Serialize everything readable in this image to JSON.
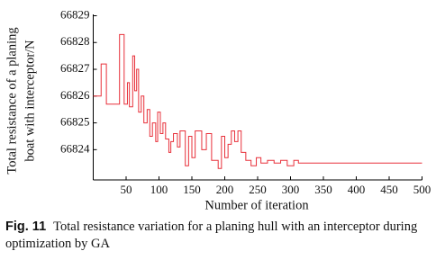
{
  "chart_data": {
    "type": "line",
    "step": true,
    "ylabel": [
      "Total resistance of a planing",
      "boat with interceptor/N"
    ],
    "xlabel": "Number of iteration",
    "x": [
      0,
      12,
      20,
      40,
      47,
      52,
      55,
      60,
      63,
      66,
      69,
      73,
      77,
      82,
      86,
      90,
      95,
      98,
      102,
      106,
      110,
      115,
      118,
      122,
      128,
      132,
      140,
      145,
      150,
      155,
      165,
      172,
      180,
      190,
      195,
      200,
      205,
      210,
      215,
      220,
      225,
      232,
      240,
      248,
      255,
      265,
      275,
      285,
      295,
      305,
      312,
      500
    ],
    "series": [
      {
        "color": "#e8303a",
        "values": [
          66826.0,
          66827.2,
          66825.7,
          66828.3,
          66825.7,
          66826.5,
          66825.6,
          66827.5,
          66826.2,
          66827.0,
          66825.4,
          66826.0,
          66825.0,
          66825.5,
          66824.5,
          66825.0,
          66824.3,
          66825.4,
          66824.6,
          66825.0,
          66824.4,
          66823.9,
          66824.3,
          66824.6,
          66824.1,
          66824.7,
          66823.4,
          66824.5,
          66823.7,
          66824.7,
          66824.0,
          66824.6,
          66823.6,
          66823.3,
          66824.5,
          66823.7,
          66824.2,
          66824.7,
          66824.3,
          66824.7,
          66823.9,
          66823.6,
          66823.4,
          66823.7,
          66823.5,
          66823.6,
          66823.5,
          66823.6,
          66823.4,
          66823.6,
          66823.5,
          66823.5
        ]
      }
    ],
    "xlim": [
      0,
      500
    ],
    "xticks": [
      50,
      100,
      150,
      200,
      250,
      300,
      350,
      400,
      450,
      500
    ],
    "ylim": [
      66822.87,
      66829.05
    ],
    "yticks": [
      66824,
      66825,
      66826,
      66827,
      66828,
      66829
    ]
  },
  "caption": {
    "label": "Fig. 11",
    "text": "Total resistance variation for a planing hull with an interceptor during optimization by GA"
  }
}
